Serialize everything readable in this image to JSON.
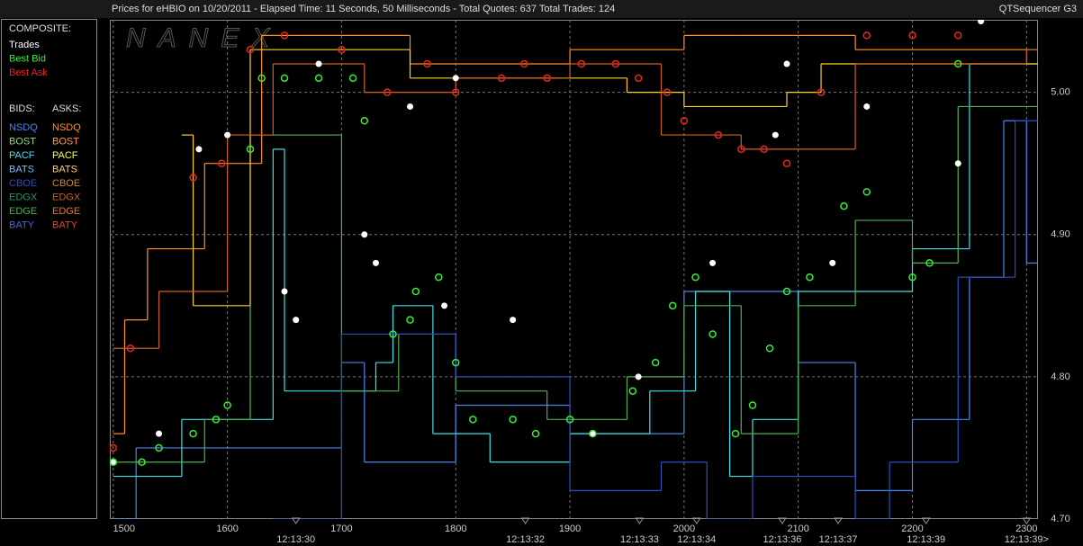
{
  "header": {
    "title": "Prices for  eHBIO  on  10/20/2011  -  Elapsed Time: 11 Seconds, 50 Milliseconds  -  Total Quotes: 637  Total Trades: 124",
    "app": "QTSequencer G3"
  },
  "sidebar": {
    "composite_title": "COMPOSITE:",
    "bids_title": "BIDS:",
    "asks_title": "ASKS:",
    "bids": [
      {
        "label": "NSDQ",
        "color": "#4a86e8"
      },
      {
        "label": "BOST",
        "color": "#8fd87f"
      },
      {
        "label": "PACF",
        "color": "#40e0e8"
      },
      {
        "label": "BATS",
        "color": "#80b8ff"
      },
      {
        "label": "CBOE",
        "color": "#2a50c0"
      },
      {
        "label": "EDGX",
        "color": "#2f8f5f"
      },
      {
        "label": "EDGE",
        "color": "#50b050"
      },
      {
        "label": "BATY",
        "color": "#4a68d8"
      }
    ],
    "asks": [
      {
        "label": "NSDQ",
        "color": "#ff9020"
      },
      {
        "label": "BOST",
        "color": "#ff9a50"
      },
      {
        "label": "PACF",
        "color": "#ffff40"
      },
      {
        "label": "BATS",
        "color": "#ffd070"
      },
      {
        "label": "CBOE",
        "color": "#d08a30"
      },
      {
        "label": "EDGX",
        "color": "#c86020"
      },
      {
        "label": "EDGE",
        "color": "#e07838"
      },
      {
        "label": "BATY",
        "color": "#e04a28"
      }
    ]
  },
  "chart_data": {
    "type": "scatter",
    "watermark": "NANEX",
    "xlim": [
      1497,
      2310
    ],
    "ylim": [
      4.7,
      5.051
    ],
    "grid": true,
    "xticks": [
      1500,
      1600,
      1700,
      1800,
      1900,
      2000,
      2100,
      2200,
      2300
    ],
    "yticks": [
      {
        "value": 4.7,
        "label": "4.70"
      },
      {
        "value": 4.8,
        "label": "4.80"
      },
      {
        "value": 4.9,
        "label": "4.90"
      },
      {
        "value": 5.0,
        "label": "5.00"
      }
    ],
    "time_marks": [
      {
        "value": 1660,
        "label": "12:13:30"
      },
      {
        "value": 1861,
        "label": "12:13:32"
      },
      {
        "value": 1961,
        "label": "12:13:33"
      },
      {
        "value": 2011,
        "label": "12:13:34"
      },
      {
        "value": 2086,
        "label": "12:13:36"
      },
      {
        "value": 2135,
        "label": "12:13:37"
      },
      {
        "value": 2212,
        "label": "12:13:39"
      },
      {
        "value": 2300,
        "label": "12:13:39>"
      }
    ],
    "lines": [
      {
        "color": "#4a86e8",
        "x": [
          1500,
          1520,
          1600,
          1700,
          1720,
          1800,
          1900,
          2000,
          2100,
          2150,
          2200,
          2250,
          2280,
          2300
        ],
        "values": [
          4.7,
          4.75,
          4.75,
          4.81,
          4.74,
          4.78,
          4.76,
          4.86,
          4.81,
          4.72,
          4.77,
          4.87,
          4.98,
          4.88
        ]
      },
      {
        "color": "#40e0e8",
        "x": [
          1500,
          1560,
          1640,
          1650,
          1730,
          1745,
          1780,
          1830,
          1900,
          1970,
          2010,
          2040,
          2060,
          2100,
          2200,
          2250
        ],
        "values": [
          4.73,
          4.77,
          4.96,
          4.79,
          4.81,
          4.85,
          4.76,
          4.74,
          4.76,
          4.79,
          4.86,
          4.73,
          4.77,
          4.86,
          4.89,
          5.02
        ]
      },
      {
        "color": "#50b050",
        "x": [
          1500,
          1580,
          1620,
          1700,
          1750,
          1800,
          1880,
          1950,
          2000,
          2050,
          2100,
          2150,
          2200,
          2240
        ],
        "values": [
          4.74,
          4.77,
          4.97,
          4.79,
          4.83,
          4.79,
          4.77,
          4.8,
          4.85,
          4.76,
          4.85,
          4.91,
          4.88,
          4.99
        ]
      },
      {
        "color": "#ff9020",
        "x": [
          1500,
          1510,
          1530,
          1580,
          1630,
          1700,
          1760,
          1820,
          1900,
          2000,
          2050,
          2100,
          2150
        ],
        "values": [
          4.76,
          4.84,
          4.89,
          4.95,
          5.04,
          5.04,
          5.02,
          5.02,
          5.03,
          5.04,
          5.04,
          5.04,
          5.03
        ]
      },
      {
        "color": "#ffd020",
        "x": [
          1560,
          1570,
          1620,
          1700,
          1760,
          1850,
          1950,
          2000,
          2060,
          2090,
          2120
        ],
        "values": [
          4.97,
          4.85,
          5.03,
          5.03,
          5.01,
          5.01,
          5.0,
          4.99,
          4.99,
          5.0,
          5.02
        ]
      },
      {
        "color": "#d06020",
        "x": [
          1500,
          1540,
          1600,
          1640,
          1720,
          1800,
          1900,
          1980,
          2050,
          2150,
          2300
        ],
        "values": [
          4.82,
          4.86,
          4.97,
          5.02,
          5.0,
          5.01,
          5.02,
          4.97,
          4.96,
          5.02,
          5.03
        ]
      },
      {
        "color": "#2a50c0",
        "x": [
          1640,
          1700,
          1800,
          1900,
          1980,
          2020,
          2060,
          2150,
          2180,
          2240,
          2290
        ],
        "values": [
          4.7,
          4.83,
          4.8,
          4.72,
          4.74,
          4.7,
          4.73,
          4.7,
          4.74,
          4.87,
          4.98
        ]
      }
    ],
    "series": [
      {
        "name": "Trades",
        "color": "#ffffff",
        "x": [
          1500,
          1540,
          1575,
          1600,
          1650,
          1660,
          1680,
          1720,
          1730,
          1760,
          1790,
          1800,
          1850,
          1920,
          1960,
          2025,
          2080,
          2090,
          2130,
          2160,
          2240,
          2260
        ],
        "values": [
          4.74,
          4.76,
          4.96,
          4.97,
          4.86,
          4.84,
          5.02,
          4.9,
          4.88,
          4.99,
          4.85,
          5.01,
          4.84,
          4.76,
          4.8,
          4.88,
          4.97,
          5.02,
          4.88,
          4.99,
          4.95,
          5.05
        ]
      },
      {
        "name": "Best Bid",
        "color": "#33ee33",
        "x": [
          1500,
          1525,
          1540,
          1570,
          1590,
          1600,
          1620,
          1630,
          1650,
          1680,
          1710,
          1720,
          1745,
          1760,
          1765,
          1785,
          1800,
          1815,
          1850,
          1870,
          1900,
          1920,
          1955,
          1975,
          1990,
          2010,
          2025,
          2045,
          2060,
          2075,
          2090,
          2110,
          2140,
          2160,
          2200,
          2215,
          2240
        ],
        "values": [
          4.74,
          4.74,
          4.75,
          4.76,
          4.77,
          4.78,
          4.96,
          5.01,
          5.01,
          5.01,
          5.01,
          4.98,
          4.83,
          4.84,
          4.86,
          4.87,
          4.81,
          4.77,
          4.77,
          4.76,
          4.77,
          4.76,
          4.79,
          4.81,
          4.85,
          4.87,
          4.83,
          4.76,
          4.78,
          4.82,
          4.86,
          4.87,
          4.92,
          4.93,
          4.87,
          4.88,
          5.02
        ]
      },
      {
        "name": "Best Ask",
        "color": "#ee2222",
        "x": [
          1500,
          1515,
          1570,
          1595,
          1620,
          1650,
          1700,
          1740,
          1775,
          1800,
          1840,
          1860,
          1880,
          1910,
          1940,
          1960,
          1985,
          2000,
          2030,
          2050,
          2070,
          2090,
          2120,
          2160,
          2200,
          2240
        ],
        "values": [
          4.75,
          4.82,
          4.94,
          4.95,
          5.03,
          5.04,
          5.03,
          5.0,
          5.02,
          5.0,
          5.01,
          5.02,
          5.01,
          5.02,
          5.02,
          5.01,
          5.0,
          4.98,
          4.97,
          4.96,
          4.96,
          4.95,
          5.0,
          5.04,
          5.04,
          5.04
        ]
      }
    ]
  }
}
